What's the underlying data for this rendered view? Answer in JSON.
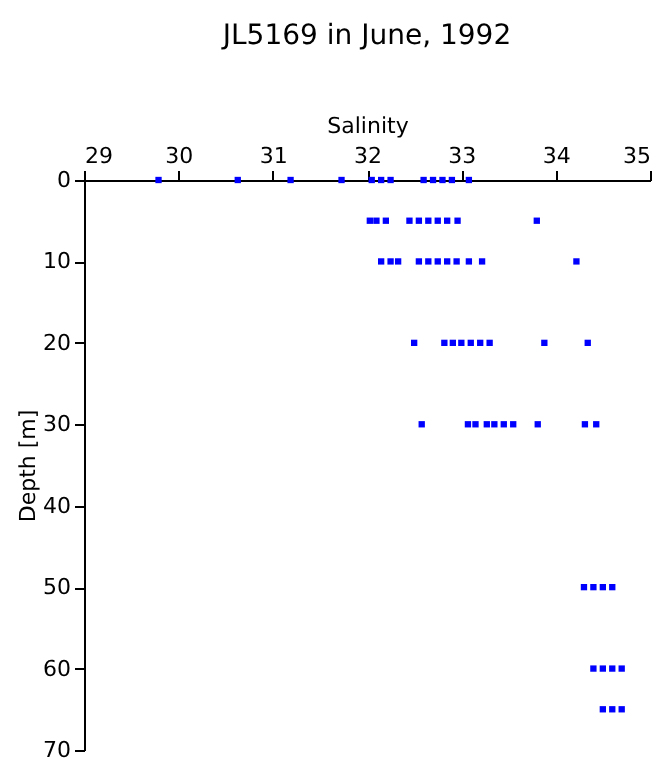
{
  "chart_data": {
    "type": "scatter",
    "title": "JL5169 in June, 1992",
    "xlabel": "Salinity",
    "ylabel": "Depth [m]",
    "x": [
      29.79,
      30.63,
      31.19,
      31.73,
      32.05,
      32.15,
      32.25,
      32.6,
      32.7,
      32.8,
      32.9,
      33.08,
      32.03,
      32.1,
      32.2,
      32.45,
      32.55,
      32.65,
      32.75,
      32.85,
      32.96,
      33.8,
      32.15,
      32.25,
      32.33,
      32.55,
      32.65,
      32.75,
      32.85,
      32.95,
      33.08,
      33.22,
      34.22,
      32.5,
      32.82,
      32.91,
      33.0,
      33.1,
      33.2,
      33.3,
      33.88,
      34.34,
      32.58,
      33.07,
      33.15,
      33.27,
      33.35,
      33.45,
      33.55,
      33.81,
      34.31,
      34.43,
      34.3,
      34.4,
      34.5,
      34.6,
      34.4,
      34.5,
      34.6,
      34.7,
      34.5,
      34.6,
      34.7
    ],
    "values": [
      0,
      0,
      0,
      0,
      0,
      0,
      0,
      0,
      0,
      0,
      0,
      0,
      5,
      5,
      5,
      5,
      5,
      5,
      5,
      5,
      5,
      5,
      10,
      10,
      10,
      10,
      10,
      10,
      10,
      10,
      10,
      10,
      10,
      20,
      20,
      20,
      20,
      20,
      20,
      20,
      20,
      20,
      30,
      30,
      30,
      30,
      30,
      30,
      30,
      30,
      30,
      30,
      50,
      50,
      50,
      50,
      60,
      60,
      60,
      60,
      65,
      65,
      65
    ],
    "color": "#0000ff",
    "marker": "square",
    "xlim": [
      29,
      35
    ],
    "xticks": [
      29,
      30,
      31,
      32,
      33,
      34,
      35
    ],
    "ylim": [
      70,
      0
    ],
    "yticks": [
      0,
      10,
      20,
      30,
      40,
      50,
      60,
      70
    ],
    "grid": false
  }
}
